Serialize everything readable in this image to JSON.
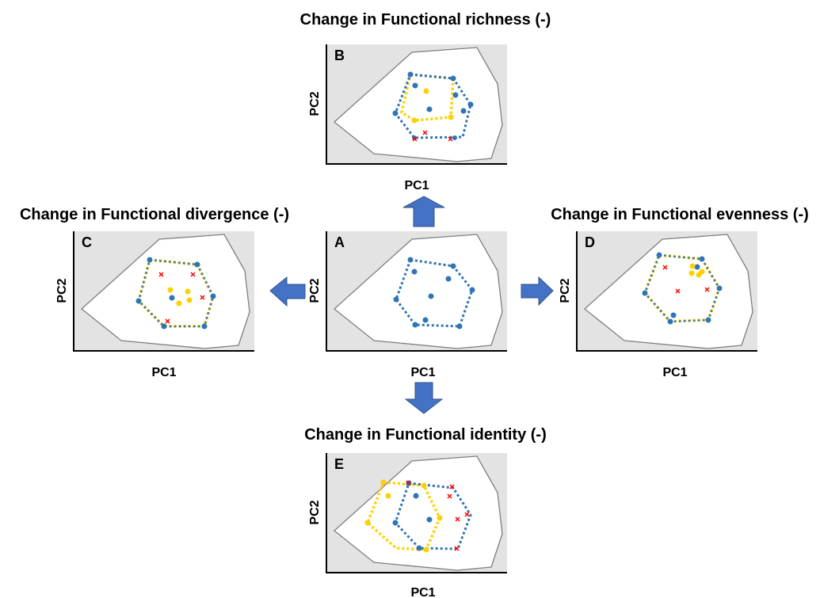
{
  "titles": {
    "richness": "Change in Functional richness (-)",
    "divergence": "Change in Functional divergence (-)",
    "evenness": "Change in Functional evenness (-)",
    "identity": "Change in Functional identity (-)"
  },
  "panels": {
    "A": {
      "letter": "A",
      "xlabel": "PC1",
      "ylabel": "PC2"
    },
    "B": {
      "letter": "B",
      "xlabel": "PC1",
      "ylabel": "PC2"
    },
    "C": {
      "letter": "C",
      "xlabel": "PC1",
      "ylabel": "PC2"
    },
    "D": {
      "letter": "D",
      "xlabel": "PC1",
      "ylabel": "PC2"
    },
    "E": {
      "letter": "E",
      "xlabel": "PC1",
      "ylabel": "PC2"
    }
  },
  "colors": {
    "panel_background": "#e3e3e3",
    "trait_space_fill": "#ffffff",
    "trait_space_outline": "#7f7f7f",
    "original_community": "#2e75b6",
    "changed_community": "#ffd000",
    "lost_species": "#ff0000",
    "arrow": "#4472c4"
  }
}
